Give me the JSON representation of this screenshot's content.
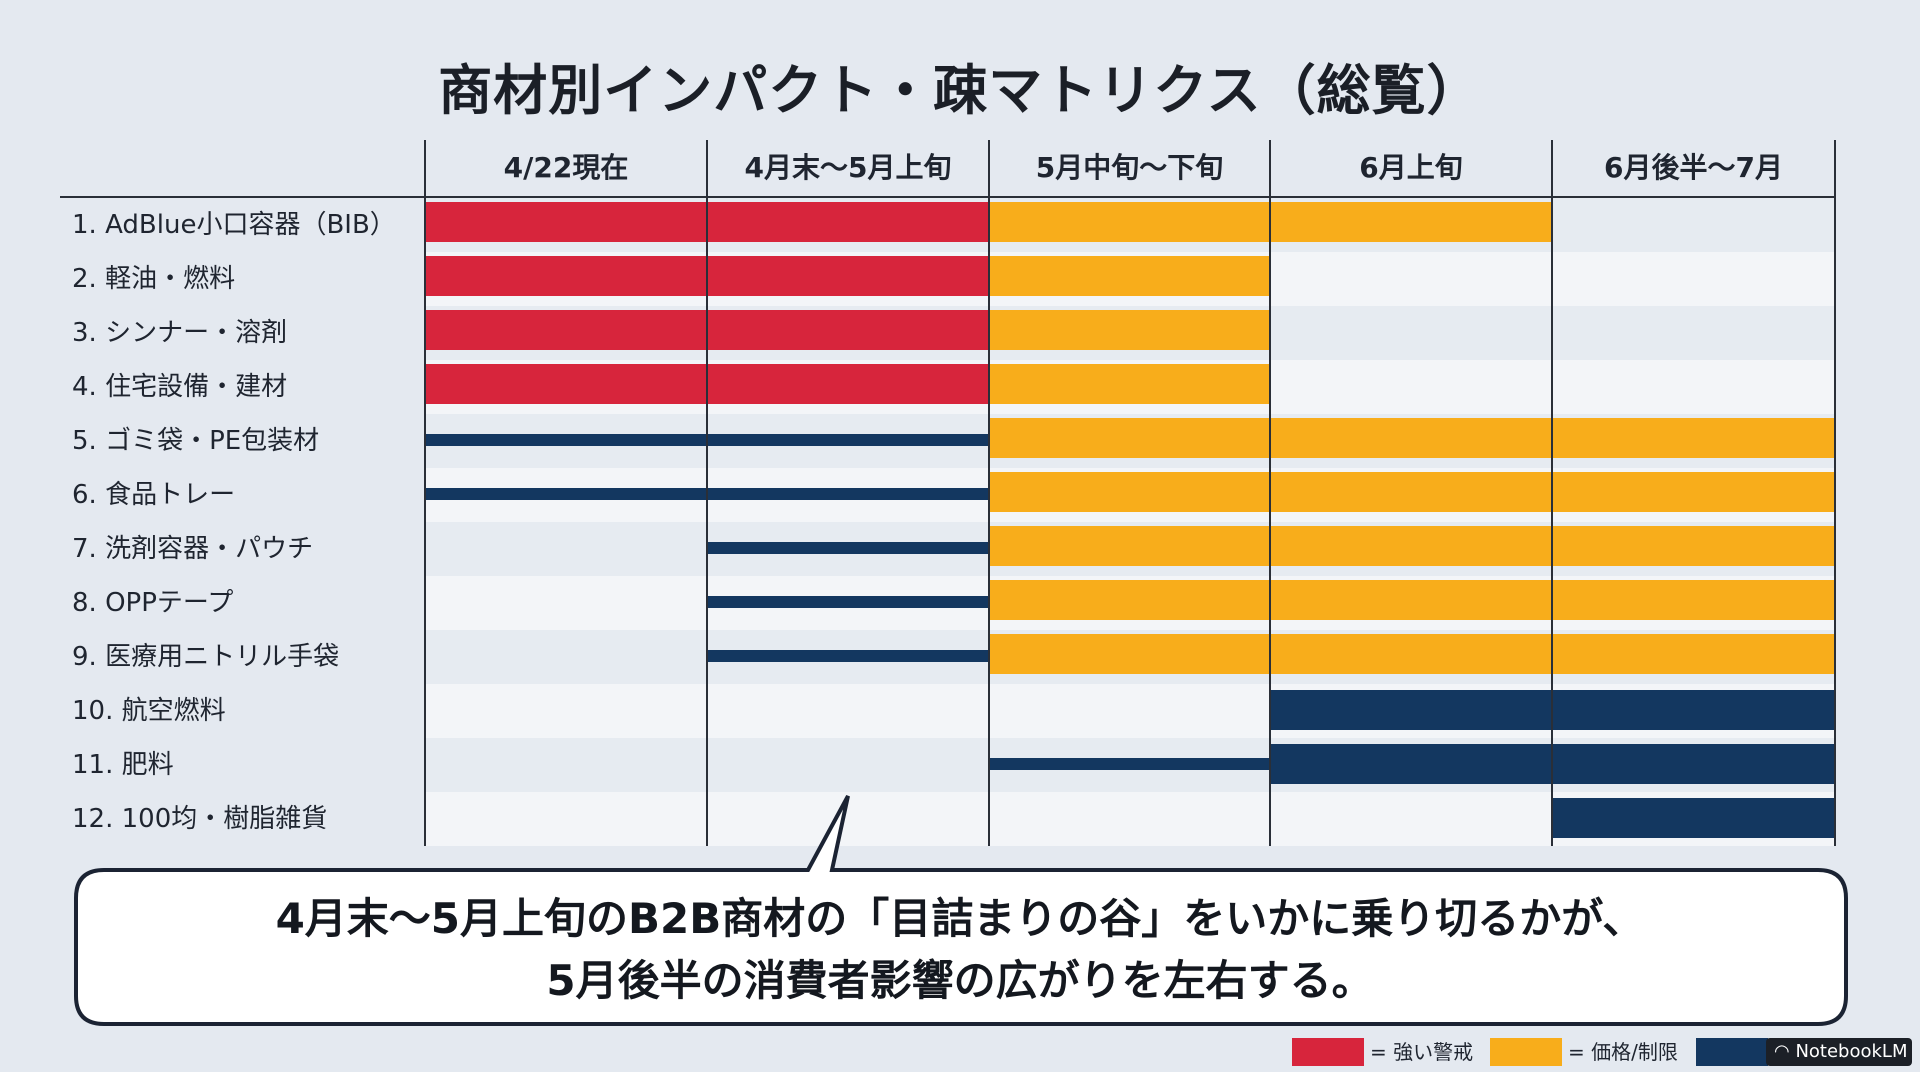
{
  "title": "商材別インパクト・疎マトリクス（総覧）",
  "columns": [
    "4/22現在",
    "4月末～5月上旬",
    "5月中旬～下旬",
    "6月上旬",
    "6月後半～7月"
  ],
  "colors": {
    "strong": "#d7253c",
    "price": "#f8ad1b",
    "limit": "#133760",
    "stripe_a": "#e6ebf1",
    "stripe_b": "#f3f5f8",
    "background": "#e4e9f0"
  },
  "rows": [
    {
      "label": "1.  AdBlue小口容器（BIB）",
      "cells": [
        "strong",
        "strong",
        "price",
        "price",
        null
      ]
    },
    {
      "label": "2.  軽油・燃料",
      "cells": [
        "strong",
        "strong",
        "price",
        null,
        null
      ]
    },
    {
      "label": "3.  シンナー・溶剤",
      "cells": [
        "strong",
        "strong",
        "price",
        null,
        null
      ]
    },
    {
      "label": "4.  住宅設備・建材",
      "cells": [
        "strong",
        "strong",
        "price",
        null,
        null
      ]
    },
    {
      "label": "5.  ゴミ袋・PE包装材",
      "cells": [
        "limit-thin",
        "limit-thin",
        "price",
        "price",
        "price"
      ]
    },
    {
      "label": "6.  食品トレー",
      "cells": [
        "limit-thin",
        "limit-thin",
        "price",
        "price",
        "price"
      ]
    },
    {
      "label": "7.  洗剤容器・パウチ",
      "cells": [
        null,
        "limit-thin",
        "price",
        "price",
        "price"
      ]
    },
    {
      "label": "8.  OPPテープ",
      "cells": [
        null,
        "limit-thin",
        "price",
        "price",
        "price"
      ]
    },
    {
      "label": "9.  医療用ニトリル手袋",
      "cells": [
        null,
        "limit-thin",
        "price",
        "price",
        "price"
      ]
    },
    {
      "label": "10. 航空燃料",
      "cells": [
        null,
        null,
        null,
        "limit",
        "limit"
      ]
    },
    {
      "label": "11. 肥料",
      "cells": [
        null,
        null,
        "limit-thin",
        "limit",
        "limit"
      ]
    },
    {
      "label": "12. 100均・樹脂雑貨",
      "cells": [
        null,
        null,
        null,
        null,
        "limit"
      ]
    }
  ],
  "callout": {
    "line1": "4月末～5月上旬のB2B商材の「目詰まりの谷」をいかに乗り切るかが、",
    "line2": "5月後半の消費者影響の広がりを左右する。"
  },
  "legend": [
    {
      "key": "strong",
      "label": "= 強い警戒"
    },
    {
      "key": "price",
      "label": "= 価格/制限"
    },
    {
      "key": "limit",
      "label": ""
    }
  ],
  "badge": "NotebookLM"
}
